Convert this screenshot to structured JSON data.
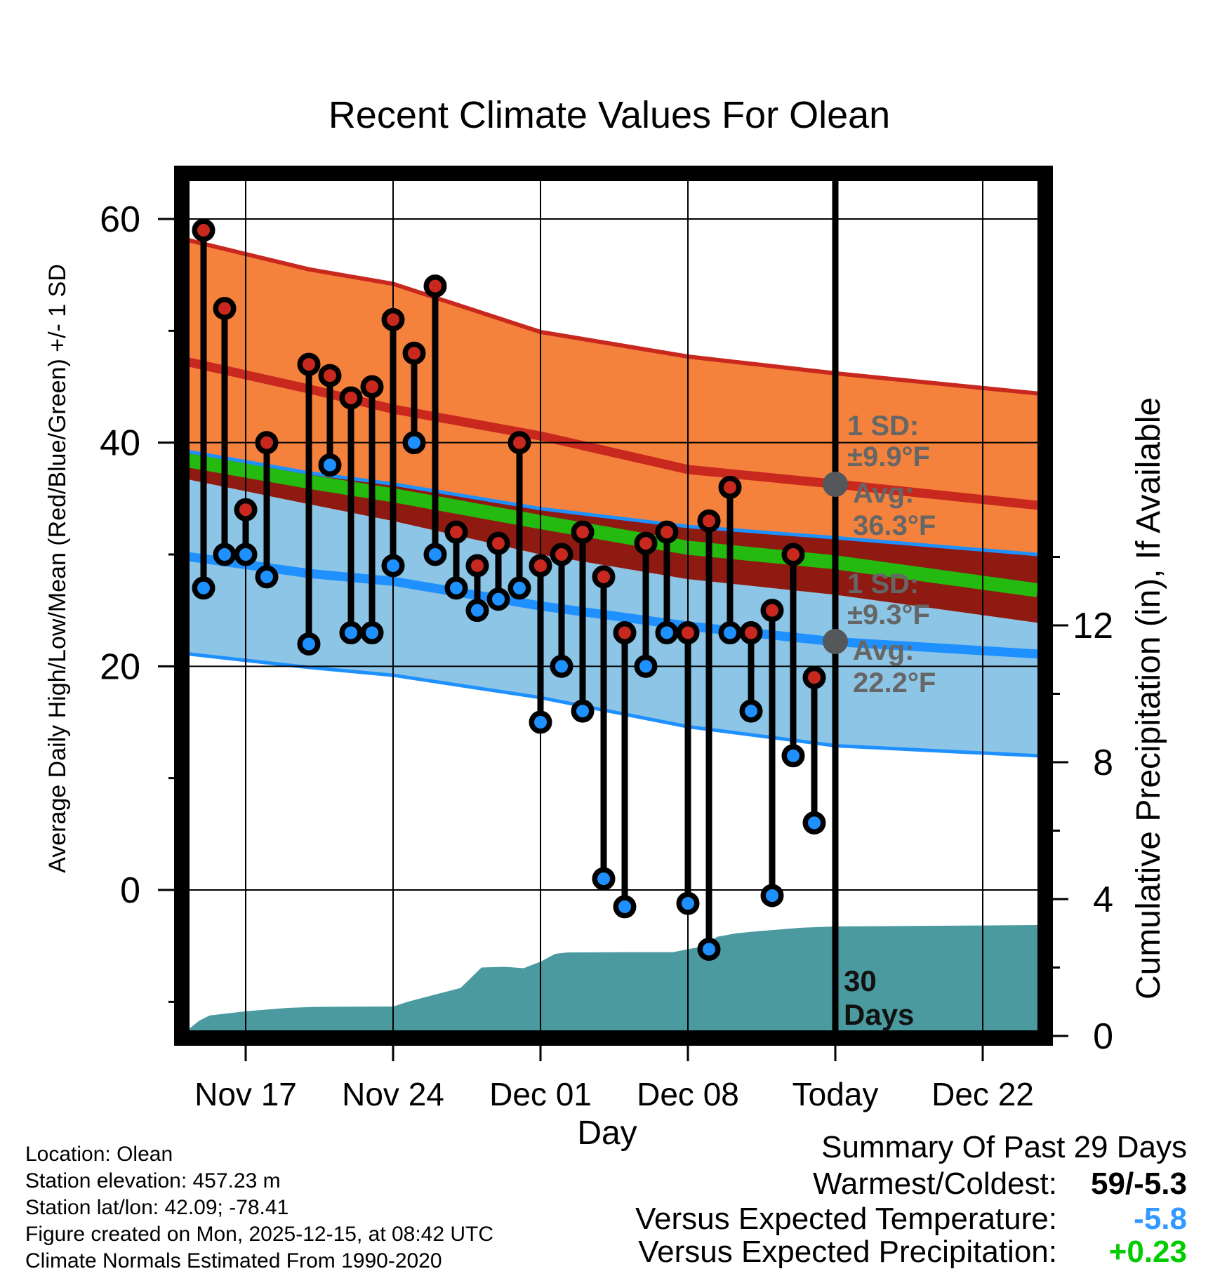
{
  "title": "Recent Climate Values For Olean",
  "axes": {
    "x_title": "Day",
    "y_left_title": "Average Daily High/Low/Mean (Red/Blue/Green) +/- 1 SD",
    "y_right_title": "Cumulative Precipitation (in), If Available",
    "x_ticks": [
      {
        "label": "Nov 17",
        "day": 2
      },
      {
        "label": "Nov 24",
        "day": 9
      },
      {
        "label": "Dec 01",
        "day": 16
      },
      {
        "label": "Dec 08",
        "day": 23
      },
      {
        "label": "Today",
        "day": 30
      },
      {
        "label": "Dec 22",
        "day": 37
      }
    ],
    "y_left_major_ticks": [
      60,
      40,
      20,
      0
    ],
    "y_left_minor_ticks": [
      50,
      30,
      10,
      -10
    ],
    "y_right_major_ticks": [
      12,
      8,
      4,
      0
    ],
    "y_right_minor_ticks": [
      14,
      10,
      6,
      2
    ]
  },
  "chart_data": {
    "type": "combo",
    "title": "Recent Climate Values For Olean",
    "xlabel": "Day",
    "ylabel_left": "Average Daily High/Low/Mean (Red/Blue/Green) +/- 1 SD",
    "ylabel_right": "Cumulative Precipitation (in), If Available",
    "temp_axis_range_f": [
      -12.7,
      63.4
    ],
    "precip_axis_range_in": [
      0,
      25
    ],
    "days": [
      "Nov 15",
      "Nov 16",
      "Nov 17",
      "Nov 18",
      "Nov 19",
      "Nov 20",
      "Nov 21",
      "Nov 22",
      "Nov 23",
      "Nov 24",
      "Nov 25",
      "Nov 26",
      "Nov 27",
      "Nov 28",
      "Nov 29",
      "Nov 30",
      "Dec 01",
      "Dec 02",
      "Dec 03",
      "Dec 04",
      "Dec 05",
      "Dec 06",
      "Dec 07",
      "Dec 08",
      "Dec 09",
      "Dec 10",
      "Dec 11",
      "Dec 12",
      "Dec 13",
      "Dec 14"
    ],
    "daily_high_f": [
      59,
      52,
      34,
      40,
      null,
      47,
      46,
      44,
      45,
      51,
      48,
      54,
      32,
      29,
      31,
      40,
      29,
      30,
      32,
      28,
      23,
      31,
      32,
      23,
      33,
      36,
      23,
      25,
      30,
      19
    ],
    "daily_low_f": [
      27,
      30,
      30,
      28,
      null,
      22,
      38,
      23,
      23,
      29,
      40,
      30,
      27,
      25,
      26,
      27,
      15,
      20,
      16,
      1,
      -1.5,
      20,
      23,
      -1.2,
      -5.3,
      23,
      16,
      -0.5,
      12,
      6
    ],
    "normals": {
      "sample_days": [
        -0.7,
        5,
        9,
        16,
        23,
        30,
        39.6
      ],
      "high_plus_sd": [
        58.1,
        55.5,
        54.2,
        49.9,
        47.7,
        46.2,
        44.4
      ],
      "avg_high": [
        47.2,
        44.8,
        43.0,
        40.6,
        37.6,
        36.3,
        34.4
      ],
      "high_minus_sd": [
        36.7,
        34.5,
        33.0,
        30.0,
        27.8,
        26.4,
        23.9
      ],
      "low_plus_sd": [
        39.2,
        37.3,
        36.3,
        34.1,
        32.5,
        31.5,
        30.0
      ],
      "avg_mean": [
        38.4,
        36.5,
        35.3,
        32.9,
        30.6,
        29.3,
        26.8
      ],
      "avg_low": [
        29.8,
        28.3,
        27.6,
        25.4,
        23.6,
        22.2,
        21.1
      ],
      "low_minus_sd": [
        21.1,
        19.9,
        19.2,
        17.2,
        14.6,
        12.9,
        12.0
      ]
    },
    "precip_cumulative": {
      "days": [
        -0.7,
        -0.2,
        0.3,
        2,
        4,
        5.3,
        9,
        9.7,
        11,
        12.2,
        12.7,
        13.2,
        14.3,
        15.2,
        16,
        16.7,
        17.3,
        20.5,
        22.3,
        23.7,
        24.4,
        25.3,
        26.3,
        28.3,
        30,
        39.6
      ],
      "values": [
        0.2,
        0.45,
        0.6,
        0.72,
        0.82,
        0.85,
        0.86,
        1.0,
        1.21,
        1.4,
        1.7,
        2.0,
        2.02,
        1.98,
        2.17,
        2.4,
        2.44,
        2.45,
        2.45,
        2.62,
        2.9,
        3.0,
        3.06,
        3.16,
        3.2,
        3.24
      ]
    },
    "legend_position": "none",
    "grid": true
  },
  "annotations": {
    "high": {
      "sd_label": "1 SD:",
      "sd_value": "±9.9°F",
      "avg_label": "Avg:",
      "avg_value": "36.3°F",
      "avg_temp_f": 36.3
    },
    "low": {
      "sd_label": "1 SD:",
      "sd_value": "±9.3°F",
      "avg_label": "Avg:",
      "avg_value": "22.2°F",
      "avg_temp_f": 22.2
    },
    "period_line1": "30",
    "period_line2": "Days",
    "today_day": 30
  },
  "footer_left": {
    "line1": "Location: Olean",
    "line2": "Station elevation: 457.23 m",
    "line3": "Station lat/lon: 42.09; -78.41",
    "line4": "Figure created on Mon, 2025-12-15, at 08:42 UTC",
    "line5": "Climate Normals Estimated From 1990-2020"
  },
  "summary": {
    "title": "Summary Of Past 29 Days",
    "row1": {
      "label": "Warmest/Coldest:",
      "value": "59/-5.3",
      "color": "#000000"
    },
    "row2": {
      "label": "Versus Expected Temperature:",
      "value": "-5.8",
      "color": "#3399FF"
    },
    "row3": {
      "label": "Versus Expected Precipitation:",
      "value": "+0.23",
      "color": "#00CC00"
    }
  },
  "colors": {
    "orange_band": "#F5823C",
    "red_line": "#C8281E",
    "maroon_band": "#8E1A12",
    "green_line": "#25BA0F",
    "lightblue_band": "#8CC5E5",
    "blue_line": "#1E90FF",
    "teal_precip": "#4A9AA0",
    "annotation_gray": "#666666",
    "marker_gray": "#54585A",
    "stem_black": "#000000"
  }
}
